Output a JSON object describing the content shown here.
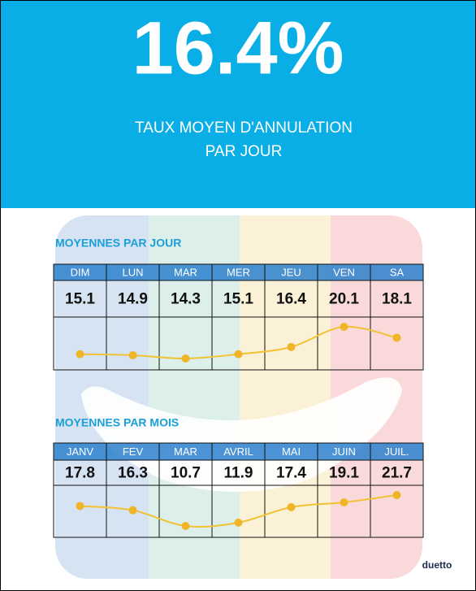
{
  "header": {
    "value": "16.4%",
    "subtitle": [
      "TAUX MOYEN D'ANNULATION",
      "PAR JOUR"
    ]
  },
  "sections": [
    {
      "title": "MOYENNES PAR JOUR",
      "labels": [
        "DIM",
        "LUN",
        "MAR",
        "MER",
        "JEU",
        "VEN",
        "SA"
      ],
      "values": [
        15.1,
        14.9,
        14.3,
        15.1,
        16.4,
        20.1,
        18.1
      ]
    },
    {
      "title": "MOYENNES PAR MOIS",
      "labels": [
        "JANV",
        "FEV",
        "MAR",
        "AVRIL",
        "MAI",
        "JUIN",
        "JUIL."
      ],
      "values": [
        17.8,
        16.3,
        10.7,
        11.9,
        17.4,
        19.1,
        21.7
      ]
    }
  ],
  "logo": "duetto"
}
